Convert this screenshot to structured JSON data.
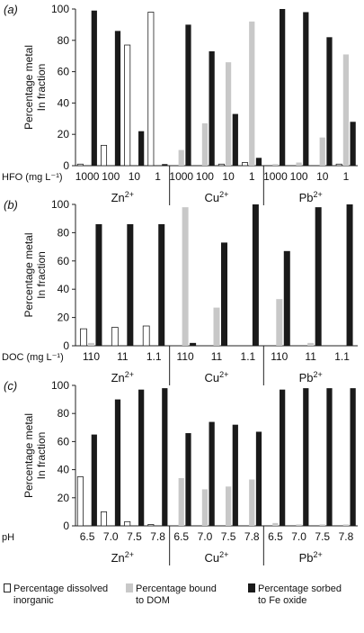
{
  "chart_data": [
    {
      "type": "bar",
      "panel": "(a)",
      "ylabel": "Percentage metal\nIn fraction",
      "xlabel": "HFO (mg L⁻¹)",
      "ylim": [
        0,
        100
      ],
      "yticks": [
        0,
        20,
        40,
        60,
        80,
        100
      ],
      "groups": [
        {
          "metal": "Zn",
          "charge": "2+",
          "categories": [
            "1000",
            "100",
            "10",
            "1"
          ]
        },
        {
          "metal": "Cu",
          "charge": "2+",
          "categories": [
            "1000",
            "100",
            "10",
            "1"
          ]
        },
        {
          "metal": "Pb",
          "charge": "2+",
          "categories": [
            "1000",
            "100",
            "10",
            "1"
          ]
        }
      ],
      "series": [
        {
          "name": "Percentage dissolved inorganic",
          "color": "#ffffff",
          "values": [
            1,
            13,
            77,
            98,
            0,
            0,
            1,
            2,
            0,
            0,
            0,
            1
          ]
        },
        {
          "name": "Percentage bound to DOM",
          "color": "#c8c8c8",
          "values": [
            0,
            0,
            0,
            0,
            10,
            27,
            66,
            92,
            1,
            2,
            18,
            71
          ]
        },
        {
          "name": "Percentage sorbed to Fe oxide",
          "color": "#1a1a1a",
          "values": [
            99,
            86,
            22,
            1,
            90,
            73,
            33,
            5,
            100,
            98,
            82,
            28
          ]
        }
      ]
    },
    {
      "type": "bar",
      "panel": "(b)",
      "ylabel": "Percentage metal\nIn fraction",
      "xlabel": "DOC (mg L⁻¹)",
      "ylim": [
        0,
        100
      ],
      "yticks": [
        0,
        20,
        40,
        60,
        80,
        100
      ],
      "groups": [
        {
          "metal": "Zn",
          "charge": "2+",
          "categories": [
            "110",
            "11",
            "1.1"
          ]
        },
        {
          "metal": "Cu",
          "charge": "2+",
          "categories": [
            "110",
            "11",
            "1.1"
          ]
        },
        {
          "metal": "Pb",
          "charge": "2+",
          "categories": [
            "110",
            "11",
            "1.1"
          ]
        }
      ],
      "series": [
        {
          "name": "Percentage dissolved inorganic",
          "color": "#ffffff",
          "values": [
            12,
            13,
            14,
            0,
            0,
            0,
            0,
            0,
            0
          ]
        },
        {
          "name": "Percentage bound to DOM",
          "color": "#c8c8c8",
          "values": [
            2,
            0,
            0,
            98,
            27,
            0,
            33,
            2,
            0
          ]
        },
        {
          "name": "Percentage sorbed to Fe oxide",
          "color": "#1a1a1a",
          "values": [
            86,
            86,
            86,
            2,
            73,
            100,
            67,
            98,
            100
          ]
        }
      ]
    },
    {
      "type": "bar",
      "panel": "(c)",
      "ylabel": "Percentage metal\nIn fraction",
      "xlabel": "pH",
      "ylim": [
        0,
        100
      ],
      "yticks": [
        0,
        20,
        40,
        60,
        80,
        100
      ],
      "groups": [
        {
          "metal": "Zn",
          "charge": "2+",
          "categories": [
            "6.5",
            "7.0",
            "7.5",
            "7.8"
          ]
        },
        {
          "metal": "Cu",
          "charge": "2+",
          "categories": [
            "6.5",
            "7.0",
            "7.5",
            "7.8"
          ]
        },
        {
          "metal": "Pb",
          "charge": "2+",
          "categories": [
            "6.5",
            "7.0",
            "7.5",
            "7.8"
          ]
        }
      ],
      "series": [
        {
          "name": "Percentage dissolved inorganic",
          "color": "#ffffff",
          "values": [
            35,
            10,
            3,
            1,
            0,
            0,
            0,
            0,
            0,
            0,
            0,
            0
          ]
        },
        {
          "name": "Percentage bound to DOM",
          "color": "#c8c8c8",
          "values": [
            0,
            0,
            0,
            0,
            34,
            26,
            28,
            33,
            2,
            1,
            1,
            1
          ]
        },
        {
          "name": "Percentage sorbed to Fe oxide",
          "color": "#1a1a1a",
          "values": [
            65,
            90,
            97,
            98,
            66,
            74,
            72,
            67,
            97,
            98,
            98,
            98
          ]
        }
      ]
    }
  ],
  "legend": [
    {
      "label": "Percentage dissolved\ninorganic",
      "color": "#ffffff"
    },
    {
      "label": "Percentage bound\nto DOM",
      "color": "#c8c8c8"
    },
    {
      "label": "Percentage sorbed\nto Fe oxide",
      "color": "#1a1a1a"
    }
  ]
}
